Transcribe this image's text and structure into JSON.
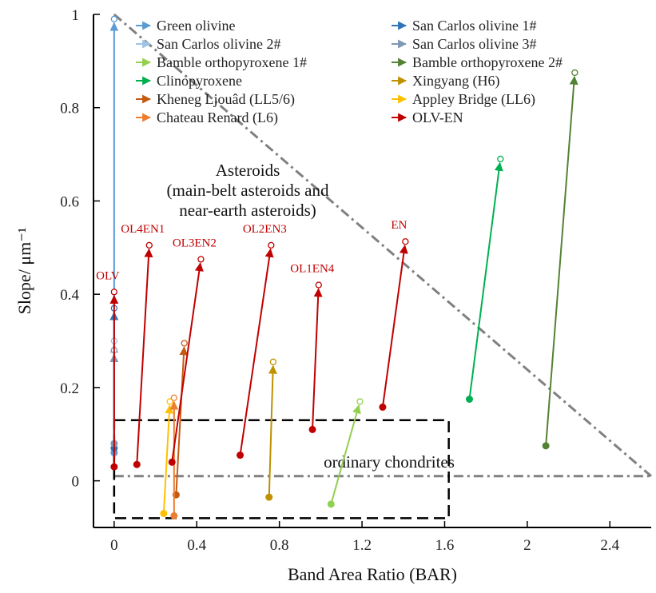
{
  "chart_data": {
    "type": "scatter",
    "xlabel": "Band Area Ratio (BAR)",
    "ylabel": "Slope/ μm⁻¹",
    "xlim": [
      -0.1,
      2.6
    ],
    "ylim": [
      -0.1,
      1.0
    ],
    "x_ticks": [
      {
        "value": 0,
        "label": "0"
      },
      {
        "value": 0.4,
        "label": "0.4"
      },
      {
        "value": 0.8,
        "label": "0.8"
      },
      {
        "value": 1.2,
        "label": "1.2"
      },
      {
        "value": 1.6,
        "label": "1.6"
      },
      {
        "value": 2.0,
        "label": "2"
      },
      {
        "value": 2.4,
        "label": "2.4"
      }
    ],
    "y_ticks": [
      {
        "value": 0,
        "label": "0"
      },
      {
        "value": 0.2,
        "label": "0.2"
      },
      {
        "value": 0.4,
        "label": "0.4"
      },
      {
        "value": 0.6,
        "label": "0.6"
      },
      {
        "value": 0.8,
        "label": "0.8"
      },
      {
        "value": 1.0,
        "label": "1"
      }
    ],
    "legend_placement": "top",
    "series": [
      {
        "name": "Green olivine",
        "color": "#5b9bd5",
        "arrows": [
          {
            "from": [
              0.0,
              0.06
            ],
            "to": [
              0.0,
              0.99
            ]
          }
        ]
      },
      {
        "name": "San Carlos olivine 1#",
        "color": "#2e75b6",
        "arrows": [
          {
            "from": [
              0.0,
              0.07
            ],
            "to": [
              0.0,
              0.37
            ]
          }
        ]
      },
      {
        "name": "San Carlos olivine 2#",
        "color": "#9dc3e6",
        "arrows": [
          {
            "from": [
              0.0,
              0.08
            ],
            "to": [
              0.0,
              0.3
            ]
          }
        ]
      },
      {
        "name": "San Carlos olivine 3#",
        "color": "#7f98b4",
        "arrows": [
          {
            "from": [
              0.0,
              0.08
            ],
            "to": [
              0.0,
              0.28
            ]
          }
        ]
      },
      {
        "name": "Bamble orthopyroxene 1#",
        "color": "#92d050",
        "arrows": [
          {
            "from": [
              1.05,
              -0.05
            ],
            "to": [
              1.19,
              0.17
            ]
          }
        ]
      },
      {
        "name": "Bamble orthopyroxene 2#",
        "color": "#548235",
        "arrows": [
          {
            "from": [
              2.09,
              0.075
            ],
            "to": [
              2.23,
              0.875
            ]
          }
        ]
      },
      {
        "name": "Clinopyroxene",
        "color": "#00b050",
        "arrows": [
          {
            "from": [
              1.72,
              0.175
            ],
            "to": [
              1.87,
              0.69
            ]
          }
        ]
      },
      {
        "name": "Xingyang (H6)",
        "color": "#bf9000",
        "arrows": [
          {
            "from": [
              0.75,
              -0.035
            ],
            "to": [
              0.77,
              0.255
            ]
          }
        ]
      },
      {
        "name": "Kheneg Ljouâd (LL5/6)",
        "color": "#c55a11",
        "arrows": [
          {
            "from": [
              0.3,
              -0.03
            ],
            "to": [
              0.34,
              0.295
            ]
          }
        ]
      },
      {
        "name": "Appley Bridge (LL6)",
        "color": "#ffc000",
        "arrows": [
          {
            "from": [
              0.24,
              -0.07
            ],
            "to": [
              0.27,
              0.17
            ]
          }
        ]
      },
      {
        "name": "Chateau Renard (L6)",
        "color": "#ed7d31",
        "arrows": [
          {
            "from": [
              0.29,
              -0.075
            ],
            "to": [
              0.29,
              0.178
            ]
          }
        ]
      },
      {
        "name": "OLV-EN",
        "color": "#c00000",
        "arrows": [
          {
            "from": [
              0.0,
              0.03
            ],
            "to": [
              0.0,
              0.405
            ]
          },
          {
            "from": [
              0.11,
              0.035
            ],
            "to": [
              0.17,
              0.505
            ]
          },
          {
            "from": [
              0.28,
              0.04
            ],
            "to": [
              0.42,
              0.475
            ]
          },
          {
            "from": [
              0.61,
              0.055
            ],
            "to": [
              0.76,
              0.505
            ]
          },
          {
            "from": [
              0.96,
              0.11
            ],
            "to": [
              0.99,
              0.42
            ]
          },
          {
            "from": [
              1.3,
              0.158
            ],
            "to": [
              1.41,
              0.513
            ]
          }
        ]
      }
    ],
    "point_labels": [
      {
        "text": "OLV",
        "x": 0.0,
        "y": 0.405
      },
      {
        "text": "OL4EN1",
        "x": 0.17,
        "y": 0.505
      },
      {
        "text": "OL3EN2",
        "x": 0.42,
        "y": 0.475
      },
      {
        "text": "OL2EN3",
        "x": 0.76,
        "y": 0.505
      },
      {
        "text": "OL1EN4",
        "x": 0.99,
        "y": 0.42
      },
      {
        "text": "EN",
        "x": 1.41,
        "y": 0.513
      }
    ],
    "regions": {
      "asteroids": {
        "lines": [
          "Asteroids",
          "(main-belt asteroids and",
          "near-earth asteroids)"
        ],
        "boundary": [
          [
            0.0,
            1.0
          ],
          [
            2.6,
            0.01
          ]
        ],
        "baseline_y": 0.01
      },
      "ordinary_chondrites": {
        "label": "ordinary chondrites",
        "x_range": [
          0.0,
          1.62
        ],
        "y_range": [
          -0.08,
          0.13
        ]
      }
    }
  }
}
